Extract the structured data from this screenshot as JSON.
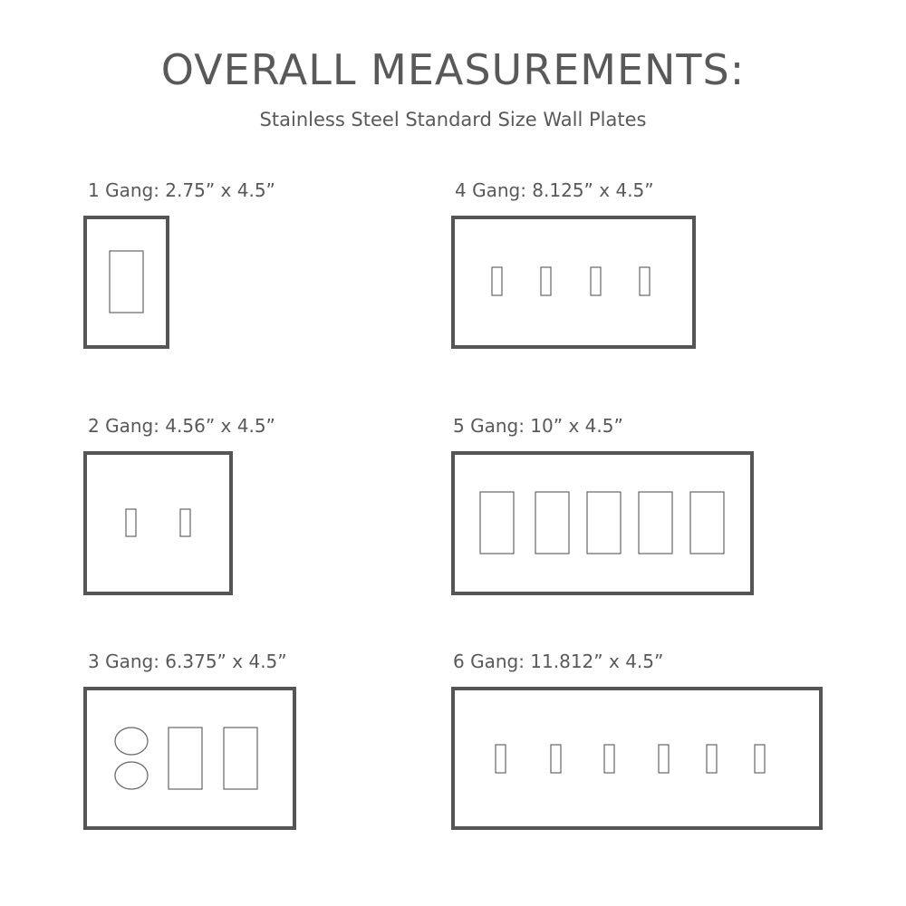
{
  "title": "OVERALL MEASUREMENTS:",
  "subtitle": "Stainless Steel Standard Size Wall Plates",
  "colors": {
    "text": "#595959",
    "plate_border": "#555555",
    "cutout": "#666666"
  },
  "plates": [
    {
      "label": "1 Gang: 2.75” x 4.5”",
      "cutouts": [
        "decora"
      ]
    },
    {
      "label": "2 Gang: 4.56” x 4.5”",
      "cutouts": [
        "toggle",
        "toggle"
      ]
    },
    {
      "label": "3 Gang: 6.375” x 4.5”",
      "cutouts": [
        "duplex",
        "decora",
        "decora"
      ]
    },
    {
      "label": "4 Gang: 8.125” x 4.5”",
      "cutouts": [
        "toggle",
        "toggle",
        "toggle",
        "toggle"
      ]
    },
    {
      "label": "5 Gang: 10” x 4.5”",
      "cutouts": [
        "decora",
        "decora",
        "decora",
        "decora",
        "decora"
      ]
    },
    {
      "label": "6 Gang: 11.812” x 4.5”",
      "cutouts": [
        "toggle",
        "toggle",
        "toggle",
        "toggle",
        "toggle",
        "toggle"
      ]
    }
  ]
}
